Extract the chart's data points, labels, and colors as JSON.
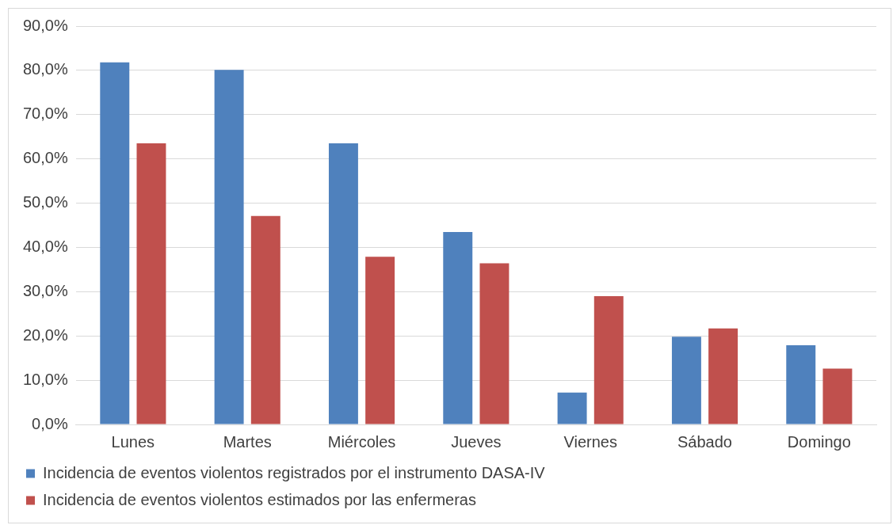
{
  "chart_data": {
    "type": "bar",
    "categories": [
      "Lunes",
      "Martes",
      "Miércoles",
      "Jueves",
      "Viernes",
      "Sábado",
      "Domingo"
    ],
    "series": [
      {
        "name": "Incidencia de eventos violentos registrados por el instrumento DASA-IV",
        "color": "#4f81bd",
        "values": [
          81.8,
          80.1,
          63.5,
          43.5,
          7.2,
          19.8,
          17.9
        ]
      },
      {
        "name": "Incidencia de eventos violentos estimados por las enfermeras",
        "color": "#c0504d",
        "values": [
          63.5,
          47.1,
          37.9,
          36.4,
          29.0,
          21.7,
          12.6
        ]
      }
    ],
    "ylim": [
      0,
      90
    ],
    "yticks": [
      {
        "value": 0,
        "label": "0,0%"
      },
      {
        "value": 10,
        "label": "10,0%"
      },
      {
        "value": 20,
        "label": "20,0%"
      },
      {
        "value": 30,
        "label": "30,0%"
      },
      {
        "value": 40,
        "label": "40,0%"
      },
      {
        "value": 50,
        "label": "50,0%"
      },
      {
        "value": 60,
        "label": "60,0%"
      },
      {
        "value": 70,
        "label": "70,0%"
      },
      {
        "value": 80,
        "label": "80,0%"
      },
      {
        "value": 90,
        "label": "90,0%"
      }
    ],
    "grid": "y",
    "legend": "bottom"
  }
}
